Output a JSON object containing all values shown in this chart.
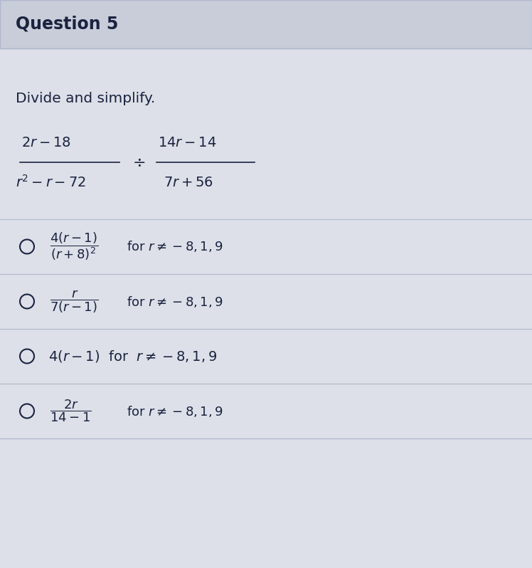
{
  "title": "Question 5",
  "body_bg": "#dde0e8",
  "header_bg": "#c8cdd9",
  "text_color": "#1a2340",
  "line_color": "#b0b8cc",
  "instruction": "Divide and simplify.",
  "problem_math": "$\\dfrac{2r-18}{r^2-r-72} \\div \\dfrac{14r-14}{7r+56}$",
  "options": [
    {
      "has_fraction": true,
      "math_frac": "$\\dfrac{4(r-1)}{(r+8)^2}$",
      "suffix_math": "for $r \\neq -8, 1, 9$"
    },
    {
      "has_fraction": true,
      "math_frac": "$\\dfrac{r}{7(r-1)}$",
      "suffix_math": "for $r \\neq -8, 1, 9$"
    },
    {
      "has_fraction": false,
      "plain_math": "$4(r-1)$  for  $r \\neq -8, 1, 9$"
    },
    {
      "has_fraction": true,
      "math_frac": "$\\dfrac{2r}{14-1}$",
      "suffix_math": "for $r \\neq -8, 1, 9$"
    }
  ]
}
